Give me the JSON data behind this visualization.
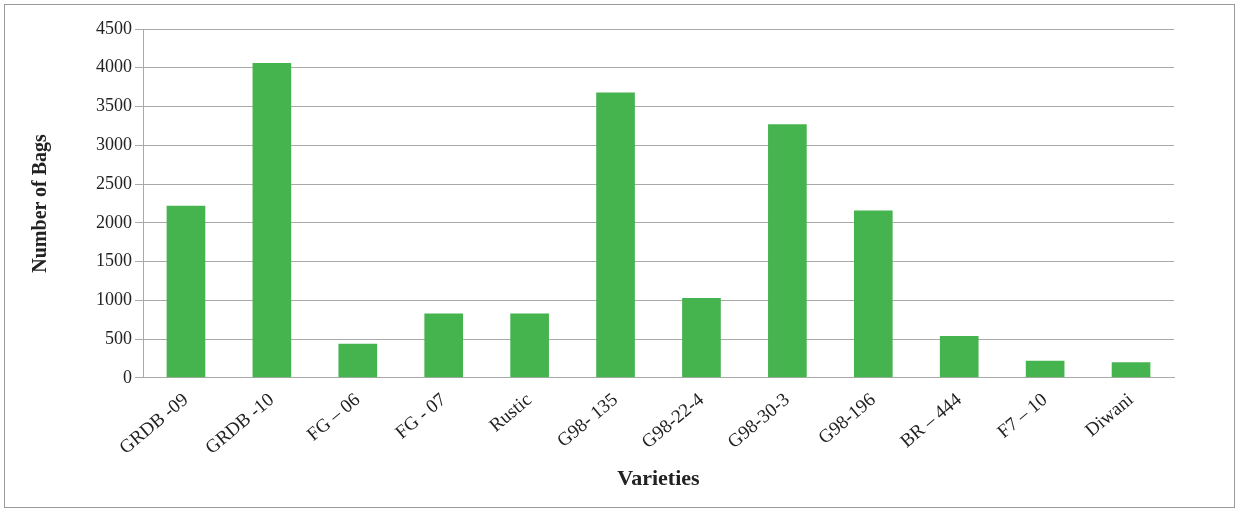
{
  "chart_data": {
    "type": "bar",
    "xlabel": "Varieties",
    "ylabel": "Number of Bags",
    "categories": [
      "GRDB -09",
      "GRDB -10",
      "FG – 06",
      "FG - 07",
      "Rustic",
      "G98- 135",
      "G98-22-4",
      "G98-30-3",
      "G98-196",
      "BR – 444",
      "F7 – 10",
      "Diwani"
    ],
    "values": [
      2220,
      4060,
      440,
      830,
      830,
      3680,
      1030,
      3270,
      2160,
      540,
      220,
      200
    ],
    "color": "#45b34e",
    "ylim": [
      0,
      4500
    ],
    "yticks": [
      0,
      500,
      1000,
      1500,
      2000,
      2500,
      3000,
      3500,
      4000,
      4500
    ],
    "grid": "y",
    "legend": false
  }
}
